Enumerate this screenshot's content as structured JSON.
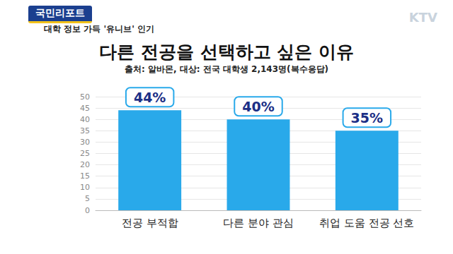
{
  "header": {
    "banner": "국민리포트",
    "headline": "대학 정보 가득 '유니브' 인기",
    "logo": "KTV"
  },
  "chart_data": {
    "type": "bar",
    "title": "다른 전공을 선택하고 싶은 이유",
    "subtitle": "출처: 알바몬, 대상: 전국 대학생 2,143명(복수응답)",
    "categories": [
      "전공 부적합",
      "다른 분야 관심",
      "취업 도움 전공 선호"
    ],
    "values": [
      44,
      40,
      35
    ],
    "value_labels": [
      "44%",
      "40%",
      "35%"
    ],
    "color": "#29a9ea",
    "ylim": [
      0,
      50
    ],
    "yticks": [
      0,
      5,
      10,
      15,
      20,
      25,
      30,
      35,
      40,
      45,
      50
    ],
    "grid": true,
    "data_labels": true
  }
}
